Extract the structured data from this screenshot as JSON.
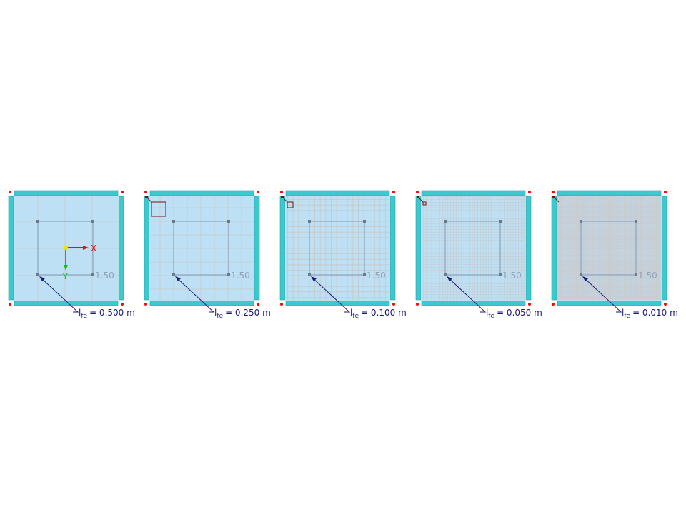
{
  "panels": [
    {
      "mesh_size": 0.5,
      "label_prefix": "l",
      "label_sub": "fe",
      "label_value": "= 0.500 m",
      "dimension": "1.50",
      "show_axes": true
    },
    {
      "mesh_size": 0.25,
      "label_prefix": "l",
      "label_sub": "fe",
      "label_value": "= 0.250 m",
      "dimension": "1.50",
      "show_axes": false
    },
    {
      "mesh_size": 0.1,
      "label_prefix": "l",
      "label_sub": "fe",
      "label_value": "= 0.100 m",
      "dimension": "1.50",
      "show_axes": false
    },
    {
      "mesh_size": 0.05,
      "label_prefix": "l",
      "label_sub": "fe",
      "label_value": "= 0.050 m",
      "dimension": "1.50",
      "show_axes": false
    },
    {
      "mesh_size": 0.01,
      "label_prefix": "l",
      "label_sub": "fe",
      "label_value": "= 0.010 m",
      "dimension": "1.50",
      "show_axes": false
    }
  ],
  "axes": {
    "x_label": "X",
    "y_label": "Y"
  },
  "colors": {
    "plate": "#bde0f5",
    "support": "#3cc8cc",
    "mesh": "#c8c8c8",
    "label": "#1a1a7a",
    "x_axis": "#e01010",
    "y_axis": "#10c010",
    "node": "#ff0000"
  }
}
